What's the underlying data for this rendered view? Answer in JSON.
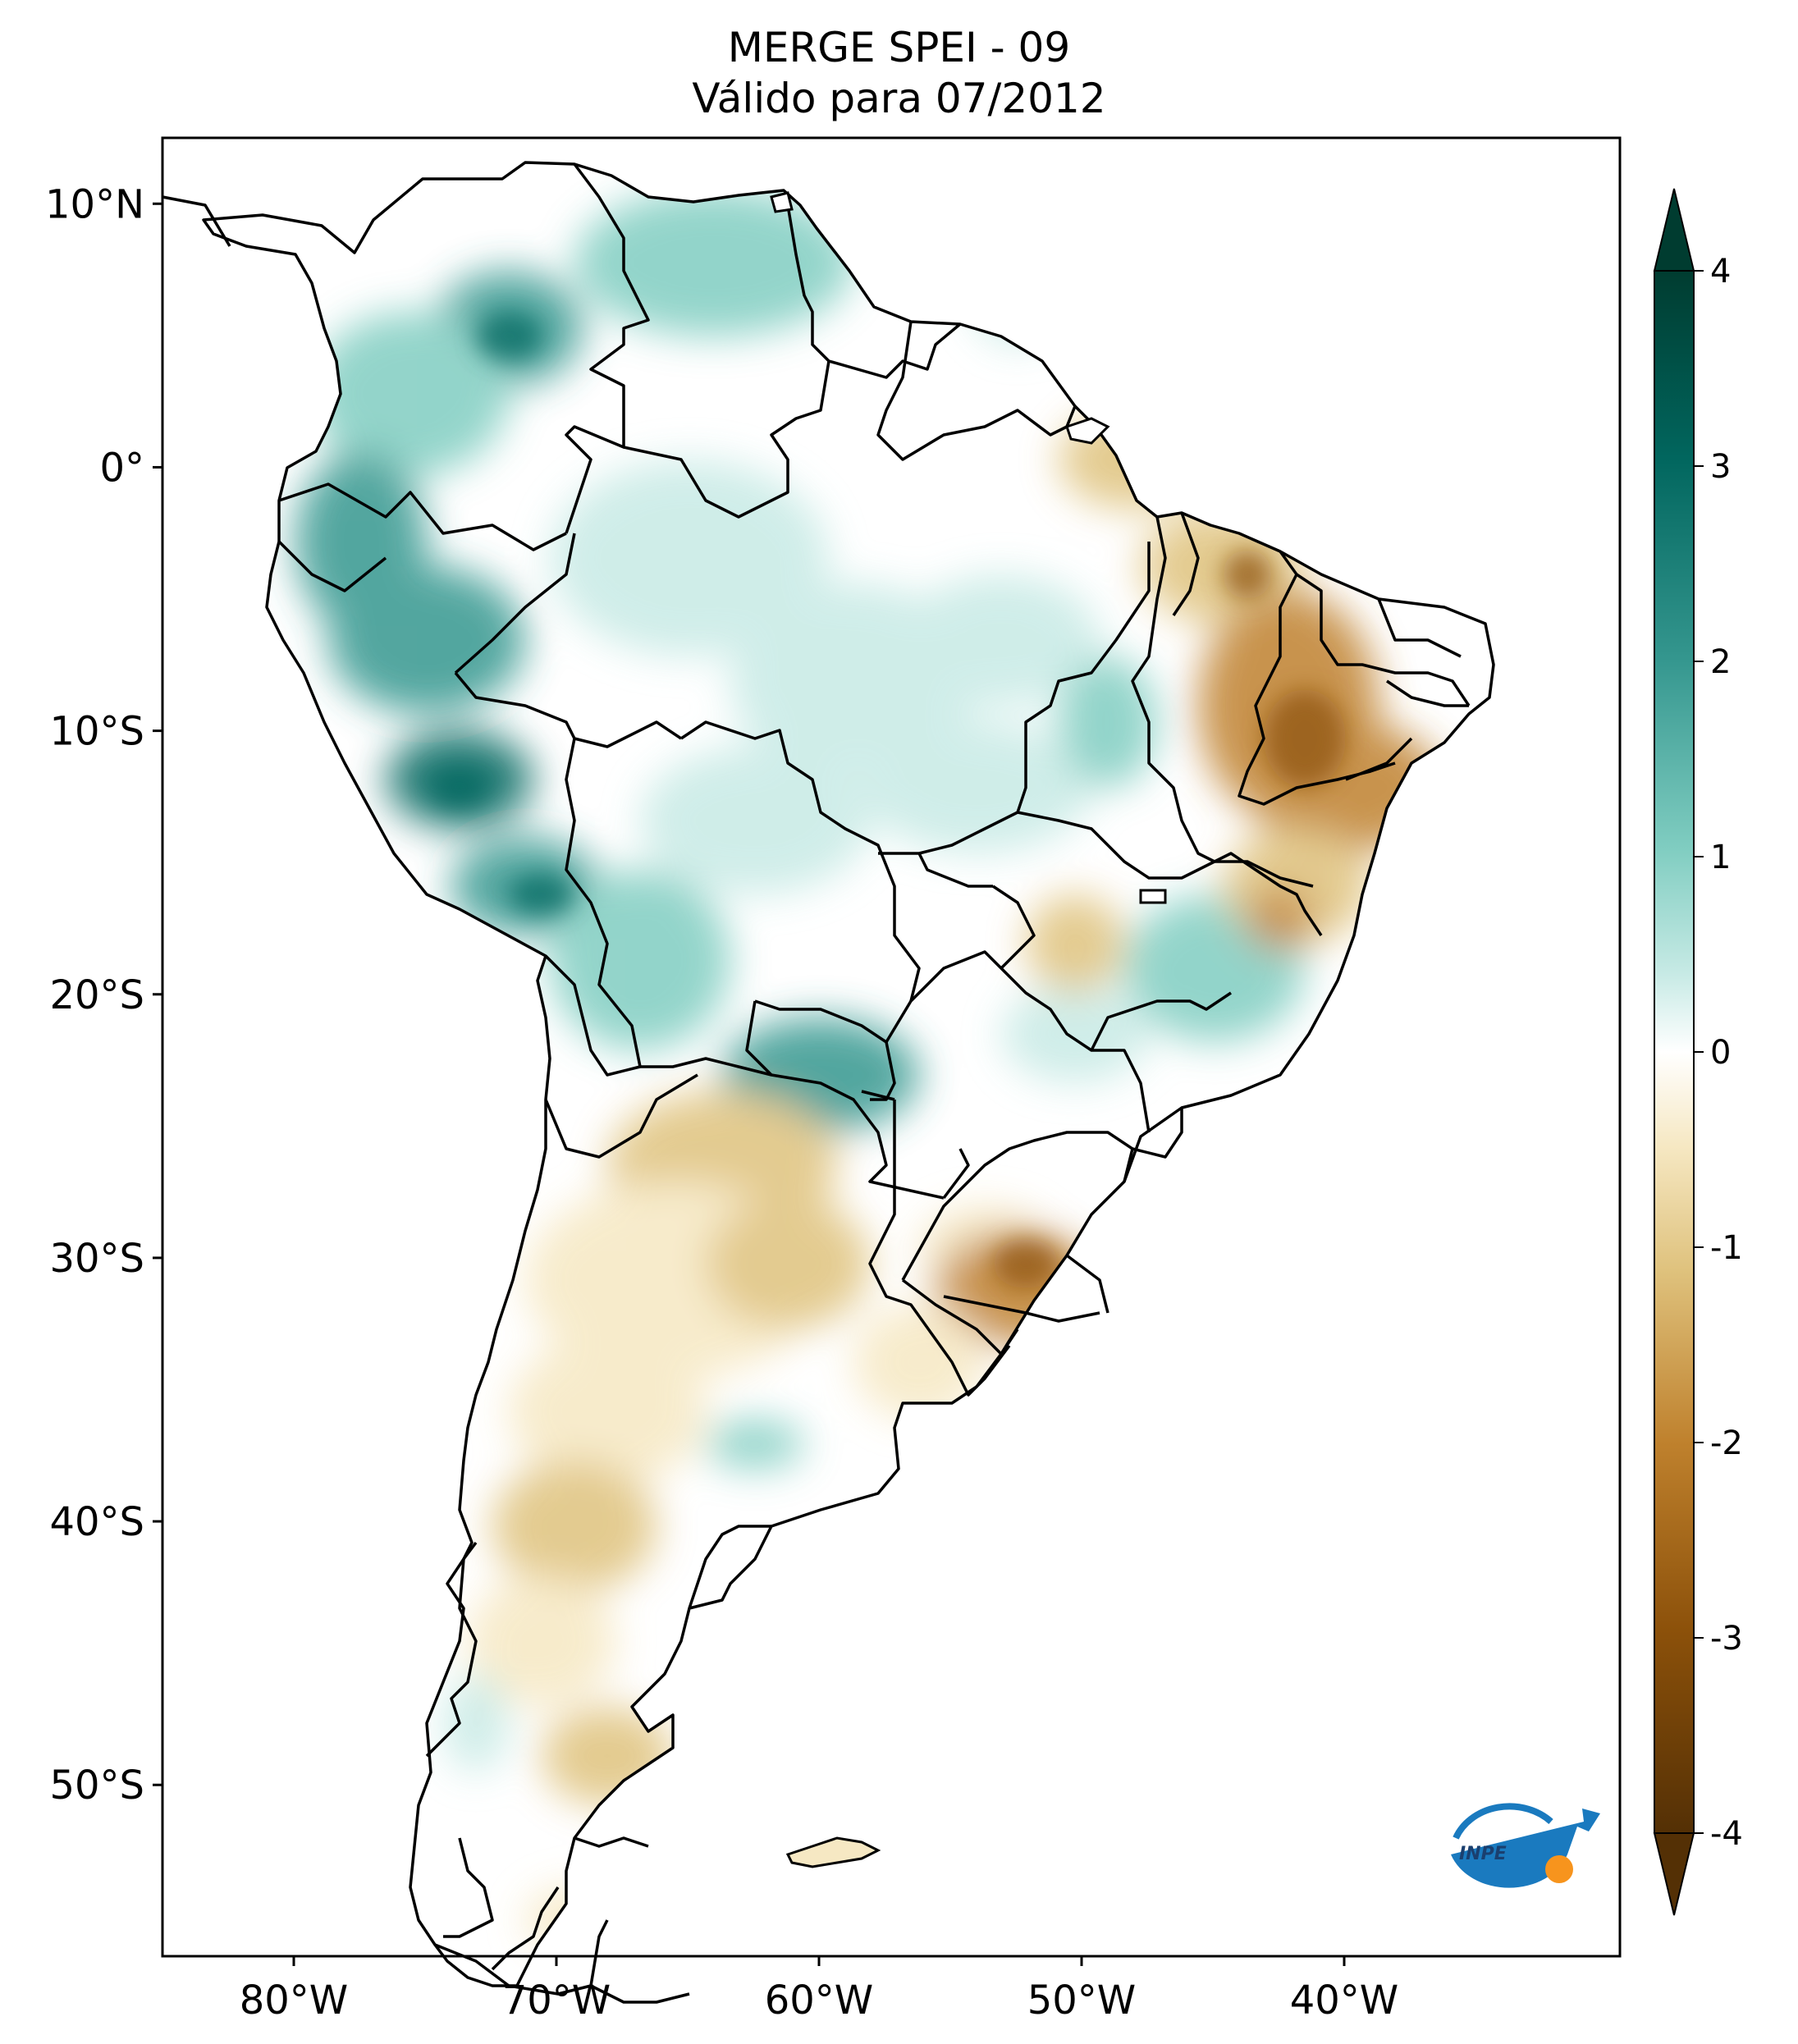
{
  "title": {
    "line1": "MERGE   SPEI - 09",
    "line2": "Válido para 07/2012"
  },
  "map": {
    "region": "South America",
    "lon_ticks": [
      {
        "value": -80,
        "label": "80°W"
      },
      {
        "value": -70,
        "label": "70°W"
      },
      {
        "value": -60,
        "label": "60°W"
      },
      {
        "value": -50,
        "label": "50°W"
      },
      {
        "value": -40,
        "label": "40°W"
      }
    ],
    "lat_ticks": [
      {
        "value": 10,
        "label": "10°N"
      },
      {
        "value": 0,
        "label": "0°"
      },
      {
        "value": -10,
        "label": "10°S"
      },
      {
        "value": -20,
        "label": "20°S"
      },
      {
        "value": -30,
        "label": "30°S"
      },
      {
        "value": -40,
        "label": "40°S"
      },
      {
        "value": -50,
        "label": "50°S"
      }
    ],
    "lon_range": [
      -85,
      -29.5
    ],
    "lat_range": [
      -56.5,
      12.5
    ]
  },
  "colorbar": {
    "ticks": [
      "4",
      "3",
      "2",
      "1",
      "0",
      "-1",
      "-2",
      "-3",
      "-4"
    ],
    "range": [
      -4,
      4
    ],
    "colors": [
      "#543005",
      "#8c510a",
      "#bf812d",
      "#dfc27d",
      "#f6e8c3",
      "#ffffff",
      "#c7eae5",
      "#80cdc1",
      "#35978f",
      "#01665e",
      "#003c30"
    ]
  },
  "logo": {
    "text": "INPE",
    "colors": [
      "#1a7abf",
      "#f7941d"
    ]
  }
}
